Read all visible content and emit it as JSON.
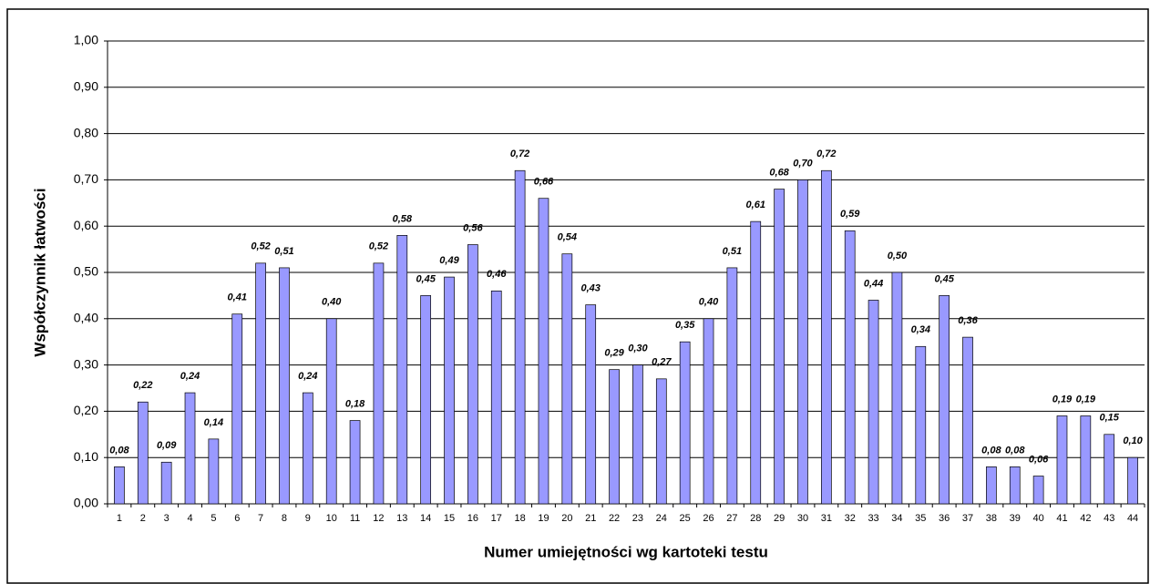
{
  "chart_data": {
    "type": "bar",
    "y_label": "Współczynnik łatwości",
    "x_label": "Numer umiejętności wg kartoteki testu",
    "categories": [
      "1",
      "2",
      "3",
      "4",
      "5",
      "6",
      "7",
      "8",
      "9",
      "10",
      "11",
      "12",
      "13",
      "14",
      "15",
      "16",
      "17",
      "18",
      "19",
      "20",
      "21",
      "22",
      "23",
      "24",
      "25",
      "26",
      "27",
      "28",
      "29",
      "30",
      "31",
      "32",
      "33",
      "34",
      "35",
      "36",
      "37",
      "38",
      "39",
      "40",
      "41",
      "42",
      "43",
      "44"
    ],
    "values": [
      0.08,
      0.22,
      0.09,
      0.24,
      0.14,
      0.41,
      0.52,
      0.51,
      0.24,
      0.4,
      0.18,
      0.52,
      0.58,
      0.45,
      0.49,
      0.56,
      0.46,
      0.72,
      0.66,
      0.54,
      0.43,
      0.29,
      0.3,
      0.27,
      0.35,
      0.4,
      0.51,
      0.61,
      0.68,
      0.7,
      0.72,
      0.59,
      0.44,
      0.5,
      0.34,
      0.45,
      0.36,
      0.08,
      0.08,
      0.06,
      0.19,
      0.19,
      0.15,
      0.1
    ],
    "value_labels": [
      "0,08",
      "0,22",
      "0,09",
      "0,24",
      "0,14",
      "0,41",
      "0,52",
      "0,51",
      "0,24",
      "0,40",
      "0,18",
      "0,52",
      "0,58",
      "0,45",
      "0,49",
      "0,56",
      "0,46",
      "0,72",
      "0,66",
      "0,54",
      "0,43",
      "0,29",
      "0,30",
      "0,27",
      "0,35",
      "0,40",
      "0,51",
      "0,61",
      "0,68",
      "0,70",
      "0,72",
      "0,59",
      "0,44",
      "0,50",
      "0,34",
      "0,45",
      "0,36",
      "0,08",
      "0,08",
      "0,06",
      "0,19",
      "0,19",
      "0,15",
      "0,10"
    ],
    "color": "#9999ff",
    "ylim": [
      0,
      1
    ],
    "yticks": [
      {
        "value": 0,
        "label": "0,00"
      },
      {
        "value": 0.1,
        "label": "0,10"
      },
      {
        "value": 0.2,
        "label": "0,20"
      },
      {
        "value": 0.3,
        "label": "0,30"
      },
      {
        "value": 0.4,
        "label": "0,40"
      },
      {
        "value": 0.5,
        "label": "0,50"
      },
      {
        "value": 0.6,
        "label": "0,60"
      },
      {
        "value": 0.7,
        "label": "0,70"
      },
      {
        "value": 0.8,
        "label": "0,80"
      },
      {
        "value": 0.9,
        "label": "0,90"
      },
      {
        "value": 1,
        "label": "1,00"
      }
    ],
    "grid": true
  }
}
